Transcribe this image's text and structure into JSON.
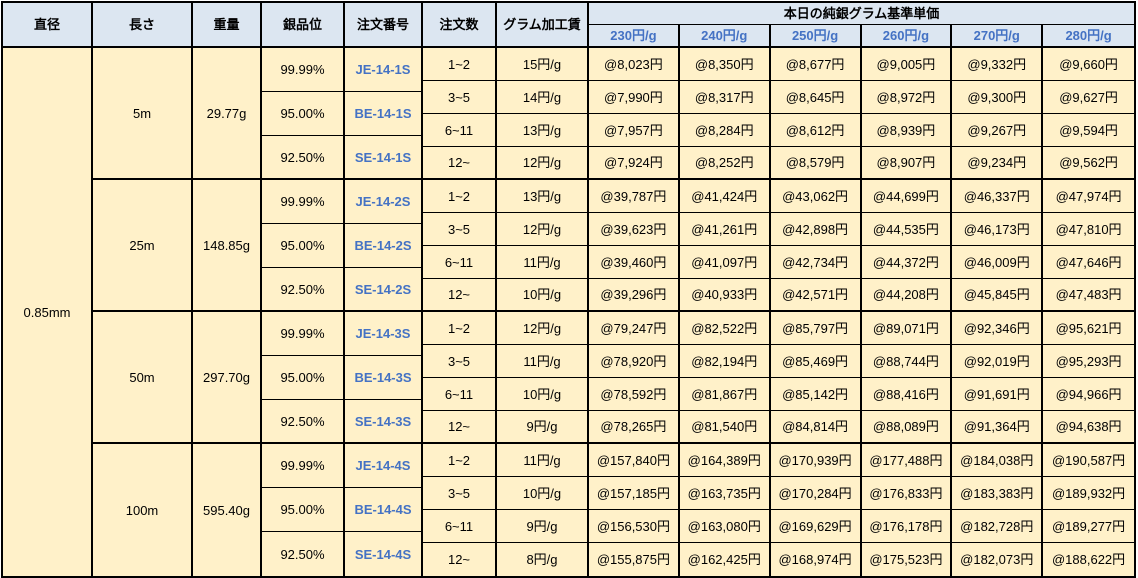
{
  "table": {
    "colors": {
      "header_bg": "#DCE6F1",
      "body_bg": "#FFF1C9",
      "accent_blue_text": "#4472C4",
      "border": "#000000"
    },
    "headers": {
      "diameter": "直径",
      "length": "長さ",
      "weight": "重量",
      "purity": "銀品位",
      "order_no": "注文番号",
      "order_qty": "注文数",
      "gram_fee": "グラム加工賃",
      "price_group": "本日の純銀グラム基準単価",
      "price_cols": [
        "230円/g",
        "240円/g",
        "250円/g",
        "260円/g",
        "270円/g",
        "280円/g"
      ]
    },
    "diameter_value": "0.85mm",
    "sections": [
      {
        "length": "5m",
        "weight": "29.77g",
        "purities": [
          {
            "purity": "99.99%",
            "order_no": "JE-14-1S"
          },
          {
            "purity": "95.00%",
            "order_no": "BE-14-1S"
          },
          {
            "purity": "92.50%",
            "order_no": "SE-14-1S"
          }
        ],
        "rows": [
          {
            "qty": "1~2",
            "fee": "15円/g",
            "prices": [
              "@8,023円",
              "@8,350円",
              "@8,677円",
              "@9,005円",
              "@9,332円",
              "@9,660円"
            ]
          },
          {
            "qty": "3~5",
            "fee": "14円/g",
            "prices": [
              "@7,990円",
              "@8,317円",
              "@8,645円",
              "@8,972円",
              "@9,300円",
              "@9,627円"
            ]
          },
          {
            "qty": "6~11",
            "fee": "13円/g",
            "prices": [
              "@7,957円",
              "@8,284円",
              "@8,612円",
              "@8,939円",
              "@9,267円",
              "@9,594円"
            ]
          },
          {
            "qty": "12~",
            "fee": "12円/g",
            "prices": [
              "@7,924円",
              "@8,252円",
              "@8,579円",
              "@8,907円",
              "@9,234円",
              "@9,562円"
            ]
          }
        ]
      },
      {
        "length": "25m",
        "weight": "148.85g",
        "purities": [
          {
            "purity": "99.99%",
            "order_no": "JE-14-2S"
          },
          {
            "purity": "95.00%",
            "order_no": "BE-14-2S"
          },
          {
            "purity": "92.50%",
            "order_no": "SE-14-2S"
          }
        ],
        "rows": [
          {
            "qty": "1~2",
            "fee": "13円/g",
            "prices": [
              "@39,787円",
              "@41,424円",
              "@43,062円",
              "@44,699円",
              "@46,337円",
              "@47,974円"
            ]
          },
          {
            "qty": "3~5",
            "fee": "12円/g",
            "prices": [
              "@39,623円",
              "@41,261円",
              "@42,898円",
              "@44,535円",
              "@46,173円",
              "@47,810円"
            ]
          },
          {
            "qty": "6~11",
            "fee": "11円/g",
            "prices": [
              "@39,460円",
              "@41,097円",
              "@42,734円",
              "@44,372円",
              "@46,009円",
              "@47,646円"
            ]
          },
          {
            "qty": "12~",
            "fee": "10円/g",
            "prices": [
              "@39,296円",
              "@40,933円",
              "@42,571円",
              "@44,208円",
              "@45,845円",
              "@47,483円"
            ]
          }
        ]
      },
      {
        "length": "50m",
        "weight": "297.70g",
        "purities": [
          {
            "purity": "99.99%",
            "order_no": "JE-14-3S"
          },
          {
            "purity": "95.00%",
            "order_no": "BE-14-3S"
          },
          {
            "purity": "92.50%",
            "order_no": "SE-14-3S"
          }
        ],
        "rows": [
          {
            "qty": "1~2",
            "fee": "12円/g",
            "prices": [
              "@79,247円",
              "@82,522円",
              "@85,797円",
              "@89,071円",
              "@92,346円",
              "@95,621円"
            ]
          },
          {
            "qty": "3~5",
            "fee": "11円/g",
            "prices": [
              "@78,920円",
              "@82,194円",
              "@85,469円",
              "@88,744円",
              "@92,019円",
              "@95,293円"
            ]
          },
          {
            "qty": "6~11",
            "fee": "10円/g",
            "prices": [
              "@78,592円",
              "@81,867円",
              "@85,142円",
              "@88,416円",
              "@91,691円",
              "@94,966円"
            ]
          },
          {
            "qty": "12~",
            "fee": "9円/g",
            "prices": [
              "@78,265円",
              "@81,540円",
              "@84,814円",
              "@88,089円",
              "@91,364円",
              "@94,638円"
            ]
          }
        ]
      },
      {
        "length": "100m",
        "weight": "595.40g",
        "purities": [
          {
            "purity": "99.99%",
            "order_no": "JE-14-4S"
          },
          {
            "purity": "95.00%",
            "order_no": "BE-14-4S"
          },
          {
            "purity": "92.50%",
            "order_no": "SE-14-4S"
          }
        ],
        "rows": [
          {
            "qty": "1~2",
            "fee": "11円/g",
            "prices": [
              "@157,840円",
              "@164,389円",
              "@170,939円",
              "@177,488円",
              "@184,038円",
              "@190,587円"
            ]
          },
          {
            "qty": "3~5",
            "fee": "10円/g",
            "prices": [
              "@157,185円",
              "@163,735円",
              "@170,284円",
              "@176,833円",
              "@183,383円",
              "@189,932円"
            ]
          },
          {
            "qty": "6~11",
            "fee": "9円/g",
            "prices": [
              "@156,530円",
              "@163,080円",
              "@169,629円",
              "@176,178円",
              "@182,728円",
              "@189,277円"
            ]
          },
          {
            "qty": "12~",
            "fee": "8円/g",
            "prices": [
              "@155,875円",
              "@162,425円",
              "@168,974円",
              "@175,523円",
              "@182,073円",
              "@188,622円"
            ]
          }
        ]
      }
    ]
  }
}
